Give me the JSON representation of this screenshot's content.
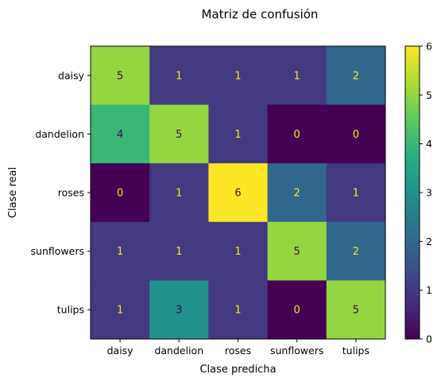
{
  "chart_data": {
    "type": "heatmap",
    "title": "Matriz de confusión",
    "xlabel": "Clase predicha",
    "ylabel": "Clase real",
    "x_categories": [
      "daisy",
      "dandelion",
      "roses",
      "sunflowers",
      "tulips"
    ],
    "y_categories": [
      "daisy",
      "dandelion",
      "roses",
      "sunflowers",
      "tulips"
    ],
    "values": [
      [
        5,
        1,
        1,
        1,
        2
      ],
      [
        4,
        5,
        1,
        0,
        0
      ],
      [
        0,
        1,
        6,
        2,
        1
      ],
      [
        1,
        1,
        1,
        5,
        2
      ],
      [
        1,
        3,
        1,
        0,
        5
      ]
    ],
    "colormap": "viridis",
    "colorbar": {
      "min": 0,
      "max": 6,
      "ticks": [
        "0",
        "1",
        "2",
        "3",
        "4",
        "5",
        "6"
      ]
    },
    "grid": false
  }
}
